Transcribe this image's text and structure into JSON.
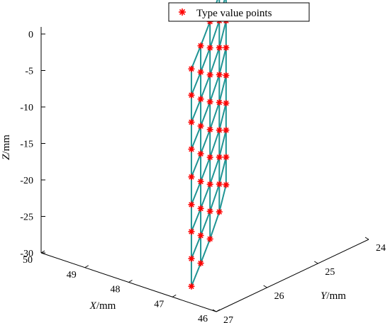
{
  "chart_data": {
    "type": "scatter",
    "projection": "3d",
    "legend": {
      "label": "Type value points",
      "placement": "top-right",
      "marker": "asterisk",
      "color": "#ff0000"
    },
    "mesh_color": "#1f9494",
    "x_axis": {
      "label_italic": "X",
      "label_unit": "/mm",
      "ticks": [
        50,
        49,
        48,
        47,
        46
      ],
      "range": [
        46,
        50
      ]
    },
    "y_axis": {
      "label_italic": "Y",
      "label_unit": "/mm",
      "ticks": [
        24,
        25,
        26,
        27
      ],
      "range": [
        24,
        27
      ]
    },
    "z_axis": {
      "label_italic": "Z",
      "label_unit": "/mm",
      "ticks": [
        0,
        -5,
        -10,
        -15,
        -20,
        -25,
        -30
      ],
      "range": [
        -30,
        1
      ]
    },
    "grid": false,
    "rows_z": [
      1,
      -2.6,
      -6.3,
      -10.0,
      -13.8,
      -17.6,
      -21.3,
      -25.0,
      -28.8
    ],
    "columns": [
      {
        "x": 49.2,
        "y": 24.05,
        "z_offset": 0.0
      },
      {
        "x": 48.6,
        "y": 24.7,
        "z_offset": -0.35
      },
      {
        "x": 48.0,
        "y": 25.4,
        "z_offset": -0.55
      },
      {
        "x": 47.4,
        "y": 26.1,
        "z_offset": -0.35
      },
      {
        "x": 46.8,
        "y": 26.8,
        "z_offset": 0.0
      }
    ]
  }
}
